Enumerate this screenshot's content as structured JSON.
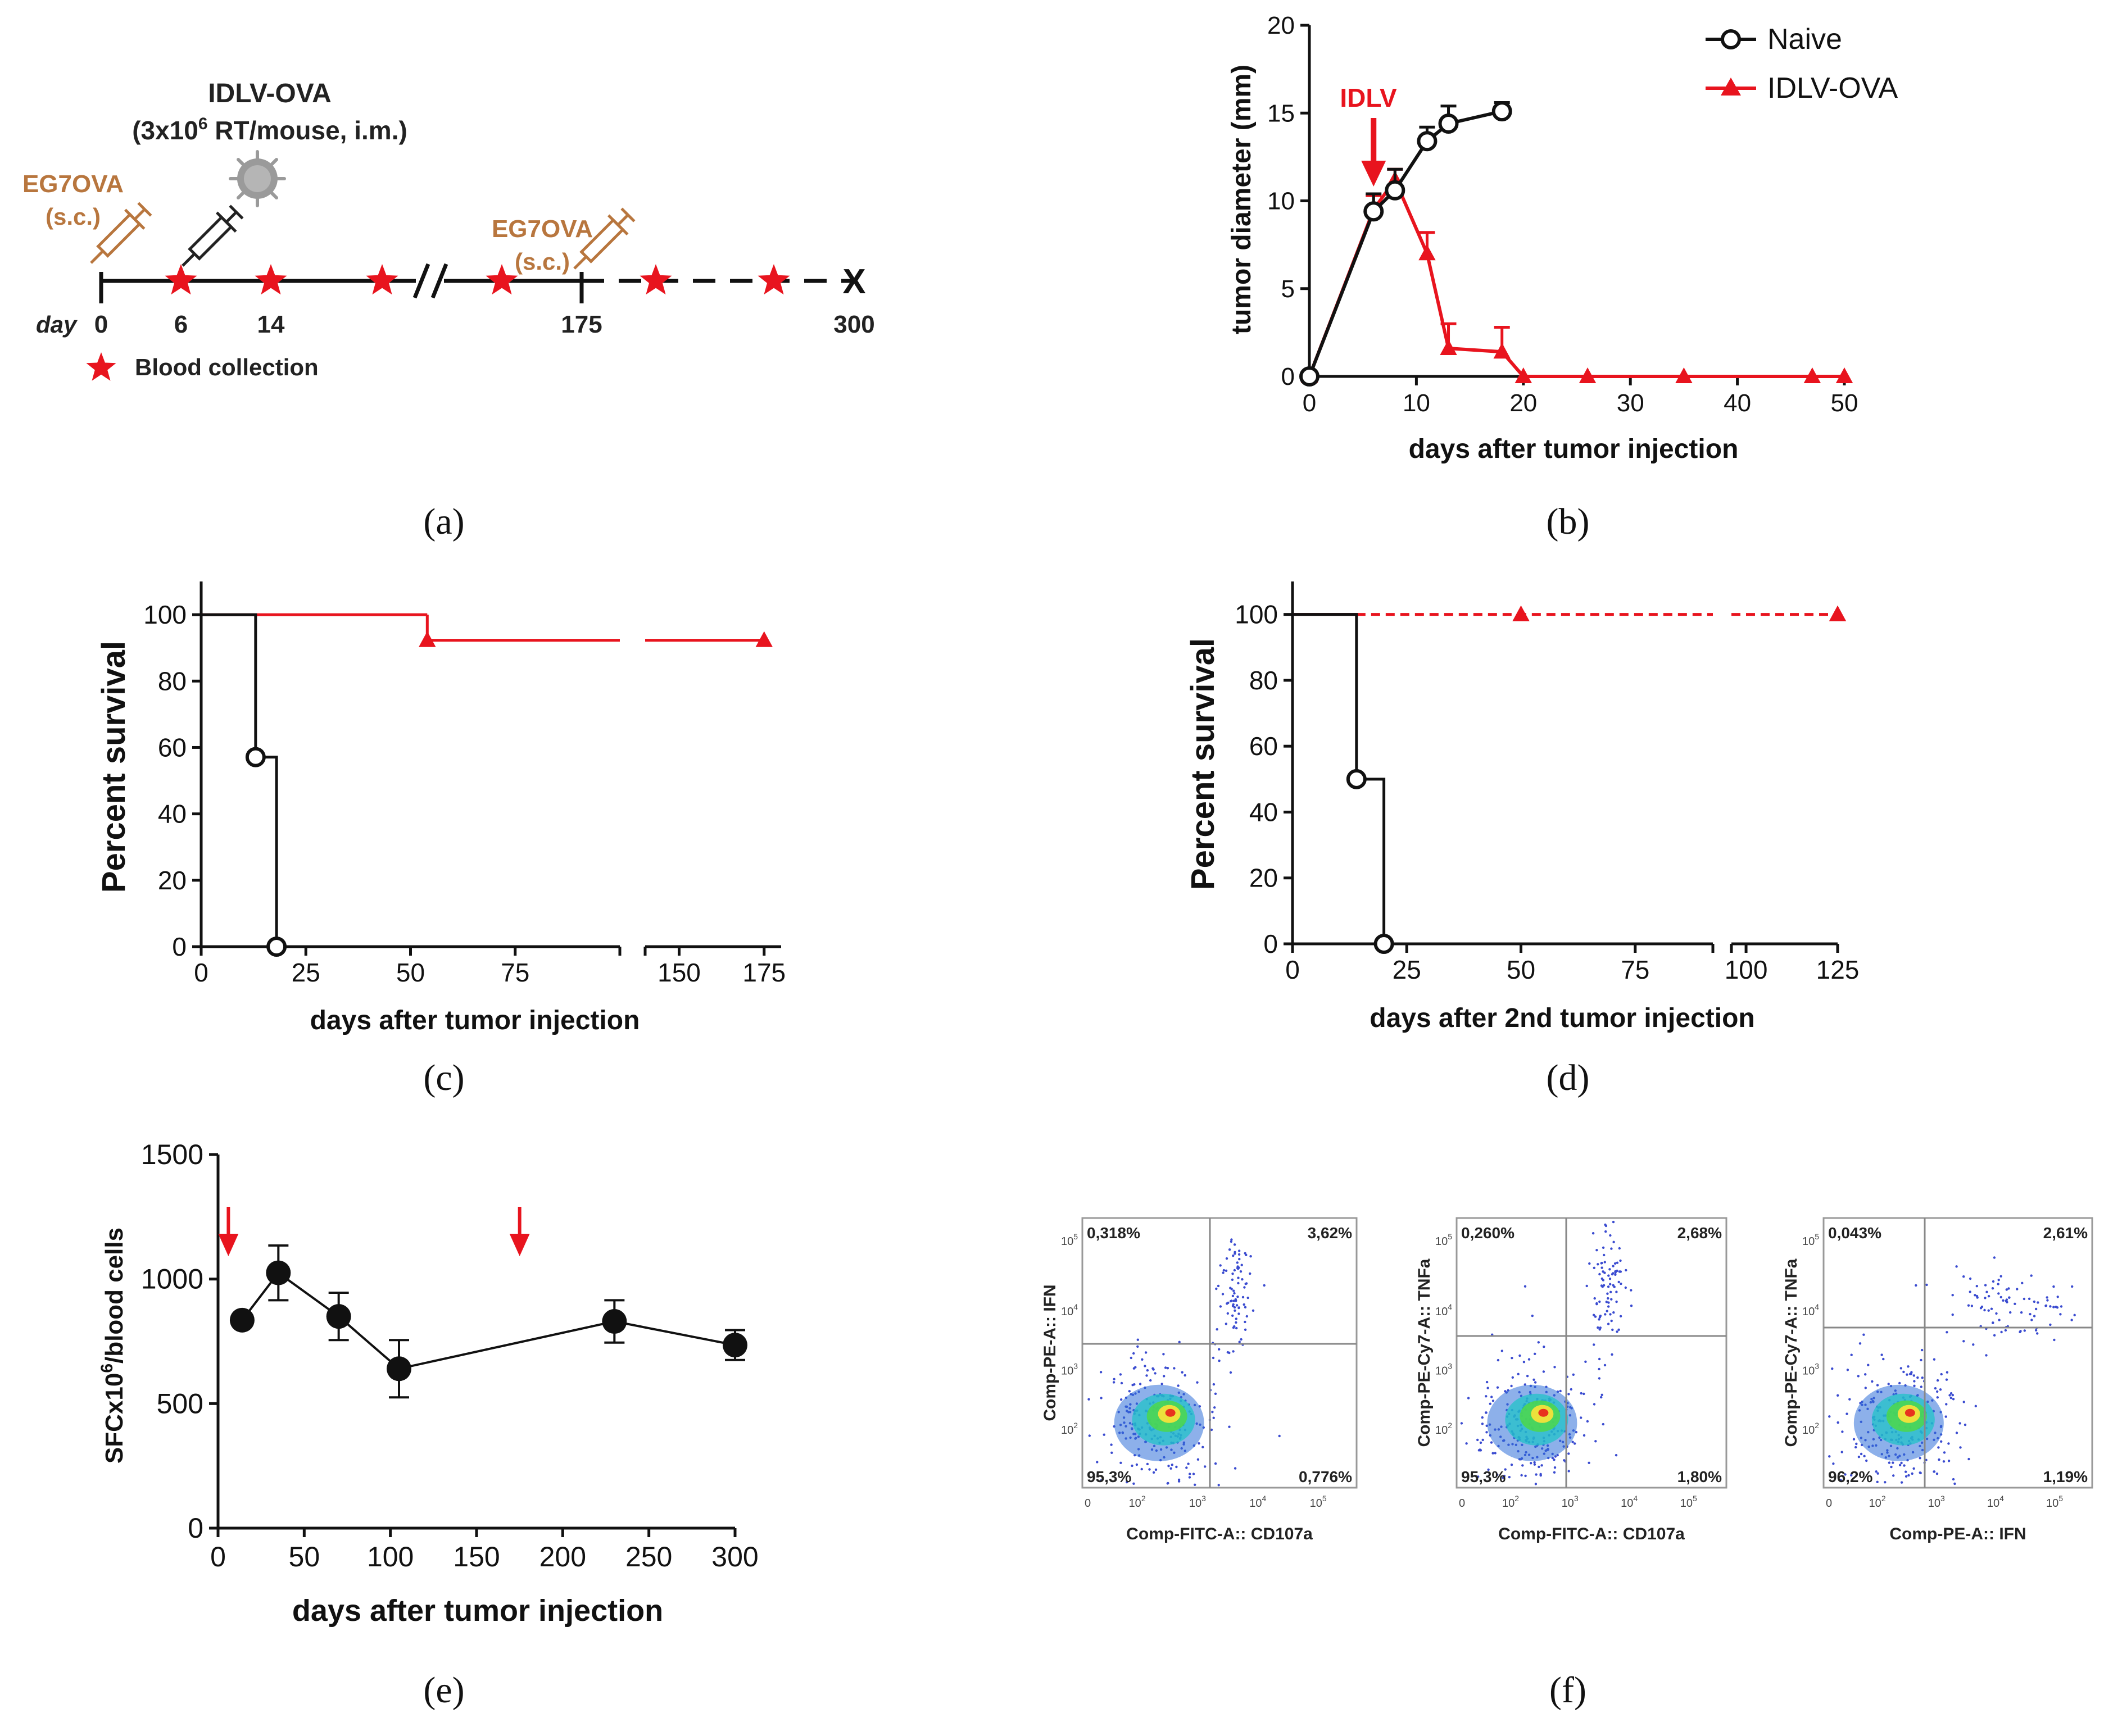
{
  "colors": {
    "naive": "#111111",
    "idlv": "#e8141e",
    "brown": "#b8763e",
    "gray": "#888888",
    "quad": "#888888"
  },
  "panel_labels": [
    "(a)",
    "(b)",
    "(c)",
    "(d)",
    "(e)",
    "(f)"
  ],
  "timeline": {
    "vaccine_title": "IDLV-OVA",
    "vaccine_dose_prefix": "(3x10",
    "vaccine_dose_sup": "6",
    "vaccine_dose_suffix": " RT/mouse, i.m.)",
    "tumor_label_1": "EG7OVA",
    "tumor_route_1": "(s.c.)",
    "tumor_label_2": "EG7OVA",
    "tumor_route_2": "(s.c.)",
    "day_label": "day",
    "ticks": [
      {
        "label": "0",
        "value": 0
      },
      {
        "label": "6",
        "value": 6
      },
      {
        "label": "14",
        "value": 14
      },
      {
        "label": "175",
        "value": 175
      },
      {
        "label": "300",
        "value": 300
      }
    ],
    "blood_collection_label": "Blood collection",
    "end_marker": "X"
  },
  "chart_data": [
    {
      "id": "b",
      "type": "line",
      "xlabel": "days after tumor injection",
      "ylabel": "tumor diameter (mm)",
      "xlim": [
        0,
        50
      ],
      "ylim": [
        0,
        20
      ],
      "xticks": [
        0,
        10,
        20,
        30,
        40,
        50
      ],
      "yticks": [
        0,
        5,
        10,
        15,
        20
      ],
      "annotation": "IDLV",
      "annotation_x": 6,
      "legend": [
        "Naive",
        "IDLV-OVA"
      ],
      "series": [
        {
          "name": "Naive",
          "marker": "circle",
          "x": [
            0,
            6,
            8,
            11,
            13,
            18
          ],
          "y": [
            0,
            9.4,
            10.6,
            13.4,
            14.4,
            15.1
          ],
          "err": [
            0,
            1.0,
            1.2,
            0.8,
            1.0,
            0.5
          ]
        },
        {
          "name": "IDLV-OVA",
          "marker": "triangle",
          "x": [
            0,
            6,
            8,
            11,
            13,
            18,
            20,
            26,
            35,
            47,
            50
          ],
          "y": [
            0,
            9.5,
            11.2,
            7.0,
            1.6,
            1.4,
            0,
            0,
            0,
            0,
            0
          ],
          "err": [
            0,
            0.8,
            0.6,
            1.2,
            1.4,
            1.4,
            0,
            0,
            0,
            0,
            0
          ]
        }
      ]
    },
    {
      "id": "c",
      "type": "line",
      "xlabel": "days after tumor injection",
      "ylabel": "Percent survival",
      "ylim": [
        0,
        110
      ],
      "yticks": [
        0,
        20,
        40,
        60,
        80,
        100
      ],
      "xticks": [
        "0",
        "25",
        "50",
        "75",
        "150",
        "175"
      ],
      "segments": [
        {
          "xlim": [
            0,
            100
          ],
          "ticks": [
            0,
            25,
            50,
            75
          ]
        },
        {
          "xlim": [
            140,
            180
          ],
          "ticks": [
            150,
            175
          ]
        }
      ],
      "series": [
        {
          "name": "Naive",
          "x": [
            0,
            13,
            13,
            18,
            18
          ],
          "y": [
            100,
            100,
            57.1,
            57.1,
            0
          ],
          "markers": [
            [
              13,
              57.1
            ],
            [
              18,
              0
            ]
          ]
        },
        {
          "name": "IDLV-OVA",
          "x": [
            0,
            54,
            54,
            175
          ],
          "y": [
            100,
            100,
            92.3,
            92.3
          ],
          "markers": [
            [
              54,
              92.3
            ],
            [
              175,
              92.3
            ]
          ]
        }
      ]
    },
    {
      "id": "d",
      "type": "line",
      "xlabel": "days after 2nd tumor injection",
      "ylabel": "Percent survival",
      "ylim": [
        0,
        110
      ],
      "yticks": [
        0,
        20,
        40,
        60,
        80,
        100
      ],
      "xticks": [
        "0",
        "25",
        "50",
        "75",
        "100",
        "125"
      ],
      "segments": [
        {
          "xlim": [
            0,
            92
          ],
          "ticks": [
            0,
            25,
            50,
            75
          ]
        },
        {
          "xlim": [
            96,
            125
          ],
          "ticks": [
            100,
            125
          ]
        }
      ],
      "series": [
        {
          "name": "Naive",
          "x": [
            0,
            14,
            14,
            20,
            20
          ],
          "y": [
            100,
            100,
            50,
            50,
            0
          ],
          "markers": [
            [
              14,
              50
            ],
            [
              20,
              0
            ]
          ]
        },
        {
          "name": "IDLV-OVA",
          "x": [
            0,
            14,
            125
          ],
          "y": [
            100,
            100,
            100
          ],
          "dashed_from": 14,
          "markers": [
            [
              50,
              100
            ],
            [
              125,
              100
            ]
          ]
        }
      ]
    },
    {
      "id": "e",
      "type": "line",
      "xlabel": "days after tumor injection",
      "ylabel_prefix": "SFCx10",
      "ylabel_sup": "6",
      "ylabel_suffix": "/blood cells",
      "xlim": [
        0,
        300
      ],
      "ylim": [
        0,
        1500
      ],
      "xticks": [
        0,
        50,
        100,
        150,
        200,
        250,
        300
      ],
      "yticks": [
        0,
        500,
        1000,
        1500
      ],
      "arrows_x": [
        6,
        175
      ],
      "series": [
        {
          "name": "SFC",
          "x": [
            14,
            35,
            70,
            105,
            230,
            300
          ],
          "y": [
            835,
            1025,
            850,
            640,
            830,
            735
          ],
          "err": [
            0,
            110,
            95,
            115,
            85,
            60
          ]
        }
      ]
    },
    {
      "id": "f",
      "type": "scatter",
      "plots": [
        {
          "ylabel": "Comp-PE-A:: IFN",
          "xlabel": "Comp-FITC-A:: CD107a",
          "q_ul": "0,318%",
          "q_ur": "3,62%",
          "q_ll": "95,3%",
          "q_lr": "0,776%"
        },
        {
          "ylabel": "Comp-PE-Cy7-A:: TNFa",
          "xlabel": "Comp-FITC-A:: CD107a",
          "q_ul": "0,260%",
          "q_ur": "2,68%",
          "q_ll": "95,3%",
          "q_lr": "1,80%"
        },
        {
          "ylabel": "Comp-PE-Cy7-A:: TNFa",
          "xlabel": "Comp-PE-A:: IFN",
          "q_ul": "0,043%",
          "q_ur": "2,61%",
          "q_ll": "96,2%",
          "q_lr": "1,19%"
        }
      ],
      "tick_base": "10",
      "tick_exps": [
        "2",
        "3",
        "4",
        "5"
      ],
      "x_zero": "0"
    }
  ]
}
